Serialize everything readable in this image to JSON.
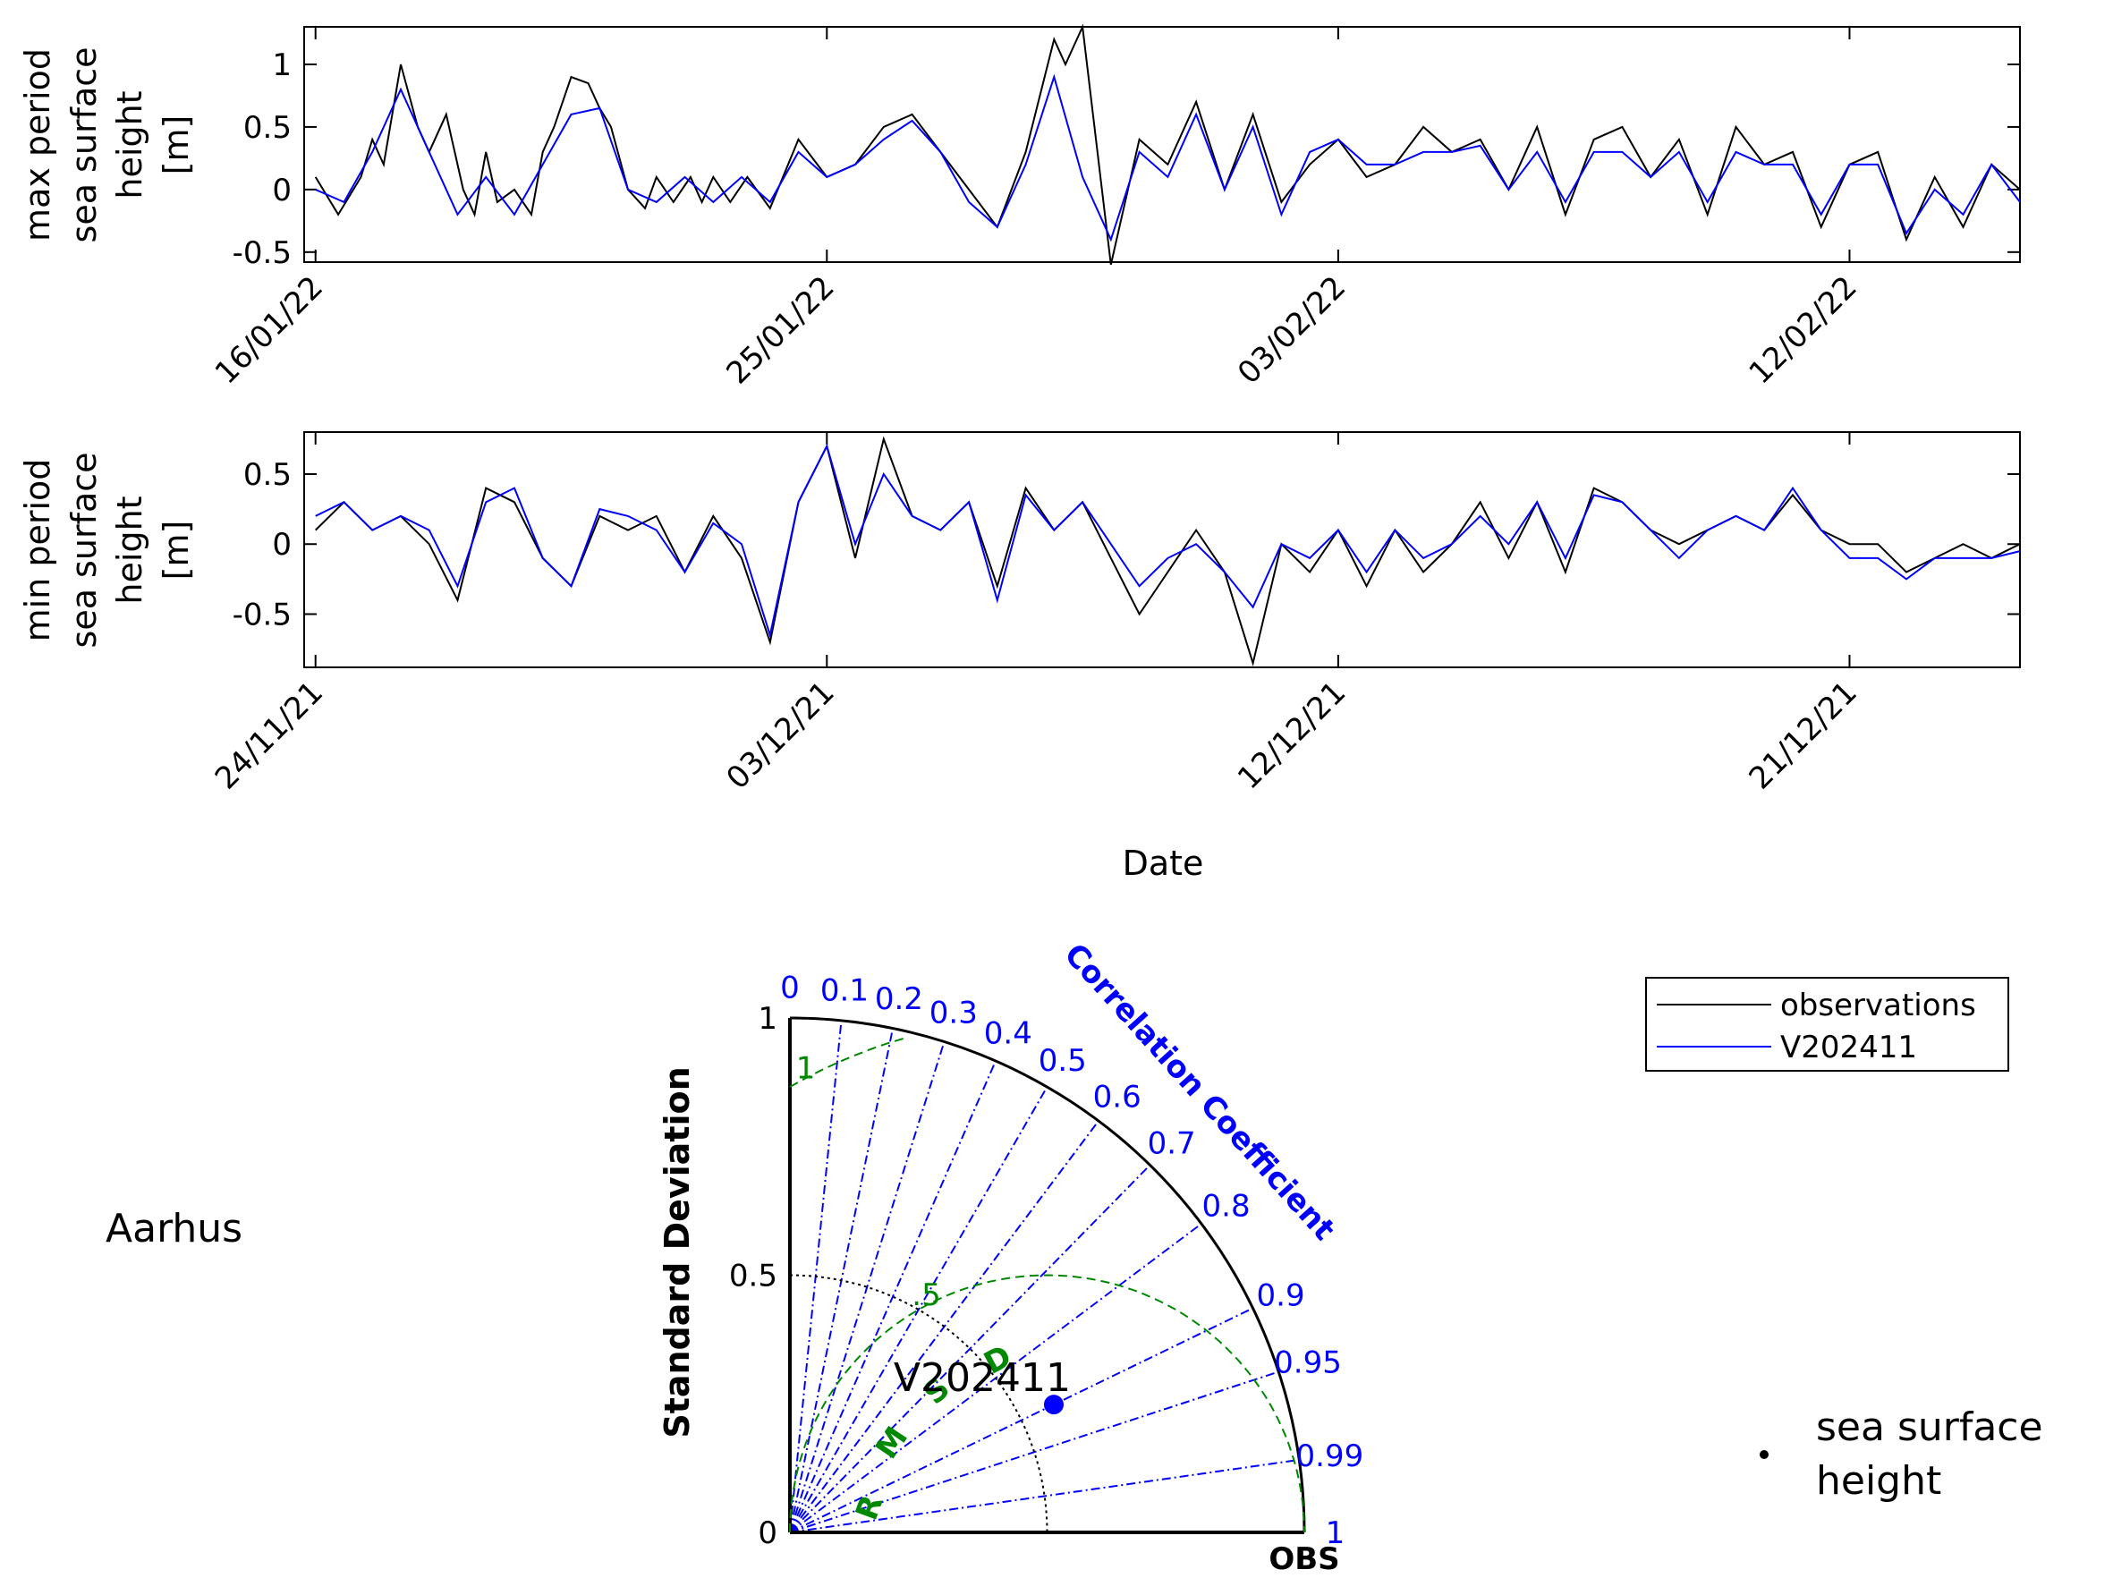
{
  "station": "Aarhus",
  "colors": {
    "observations": "#000000",
    "model": "#0000ff",
    "rmsd": "#008800",
    "grid": "#000000"
  },
  "chart_data": [
    {
      "type": "line",
      "id": "max",
      "ylabel": [
        "max period",
        "sea surface",
        "height",
        "[m]"
      ],
      "ylim": [
        -0.58,
        1.3
      ],
      "yticks": [
        -0.5,
        0,
        0.5,
        1
      ],
      "ytick_labels": [
        "-0.5",
        "0",
        "0.5",
        "1"
      ],
      "xlim_days": [
        -0.2,
        30
      ],
      "xticks": [
        "16/01/22",
        "25/01/22",
        "03/02/22",
        "12/02/22"
      ],
      "series": [
        {
          "name": "observations",
          "color": "#000000",
          "x": [
            0,
            0.4,
            0.8,
            1,
            1.2,
            1.5,
            1.8,
            2,
            2.3,
            2.6,
            2.8,
            3,
            3.2,
            3.5,
            3.8,
            4,
            4.2,
            4.5,
            4.8,
            5,
            5.2,
            5.5,
            5.8,
            6,
            6.3,
            6.6,
            6.8,
            7,
            7.3,
            7.6,
            8,
            8.5,
            9,
            9.5,
            10,
            10.5,
            11,
            11.5,
            12,
            12.5,
            13,
            13.2,
            13.5,
            14,
            14.5,
            15,
            15.5,
            16,
            16.5,
            17,
            17.5,
            18,
            18.5,
            19,
            19.5,
            20,
            20.5,
            21,
            21.5,
            22,
            22.5,
            23,
            23.5,
            24,
            24.5,
            25,
            25.5,
            26,
            26.5,
            27,
            27.5,
            28,
            28.5,
            29,
            29.5,
            30
          ],
          "y": [
            0.1,
            -0.2,
            0.1,
            0.4,
            0.2,
            1.0,
            0.5,
            0.3,
            0.6,
            0.0,
            -0.2,
            0.3,
            -0.1,
            0.0,
            -0.2,
            0.3,
            0.5,
            0.9,
            0.85,
            0.65,
            0.5,
            0.0,
            -0.15,
            0.1,
            -0.1,
            0.1,
            -0.1,
            0.1,
            -0.1,
            0.1,
            -0.15,
            0.4,
            0.1,
            0.2,
            0.5,
            0.6,
            0.3,
            0.0,
            -0.3,
            0.3,
            1.2,
            1.0,
            1.3,
            -0.6,
            0.4,
            0.2,
            0.7,
            0.0,
            0.6,
            -0.1,
            0.2,
            0.4,
            0.1,
            0.2,
            0.5,
            0.3,
            0.4,
            0.0,
            0.5,
            -0.2,
            0.4,
            0.5,
            0.1,
            0.4,
            -0.2,
            0.5,
            0.2,
            0.3,
            -0.3,
            0.2,
            0.3,
            -0.4,
            0.1,
            -0.3,
            0.2,
            0.0
          ]
        },
        {
          "name": "V202411",
          "color": "#0000ff",
          "x": [
            0,
            0.5,
            1,
            1.5,
            2,
            2.5,
            3,
            3.5,
            4,
            4.5,
            5,
            5.5,
            6,
            6.5,
            7,
            7.5,
            8,
            8.5,
            9,
            9.5,
            10,
            10.5,
            11,
            11.5,
            12,
            12.5,
            13,
            13.5,
            14,
            14.5,
            15,
            15.5,
            16,
            16.5,
            17,
            17.5,
            18,
            18.5,
            19,
            19.5,
            20,
            20.5,
            21,
            21.5,
            22,
            22.5,
            23,
            23.5,
            24,
            24.5,
            25,
            25.5,
            26,
            26.5,
            27,
            27.5,
            28,
            28.5,
            29,
            29.5,
            30
          ],
          "y": [
            0.0,
            -0.1,
            0.3,
            0.8,
            0.3,
            -0.2,
            0.1,
            -0.2,
            0.2,
            0.6,
            0.65,
            0.0,
            -0.1,
            0.1,
            -0.1,
            0.1,
            -0.1,
            0.3,
            0.1,
            0.2,
            0.4,
            0.55,
            0.3,
            -0.1,
            -0.3,
            0.2,
            0.9,
            0.1,
            -0.4,
            0.3,
            0.1,
            0.6,
            0.0,
            0.5,
            -0.2,
            0.3,
            0.4,
            0.2,
            0.2,
            0.3,
            0.3,
            0.35,
            0.0,
            0.3,
            -0.1,
            0.3,
            0.3,
            0.1,
            0.3,
            -0.1,
            0.3,
            0.2,
            0.2,
            -0.2,
            0.2,
            0.2,
            -0.35,
            0.0,
            -0.2,
            0.2,
            -0.1
          ]
        }
      ]
    },
    {
      "type": "line",
      "id": "min",
      "ylabel": [
        "min period",
        "sea surface",
        "height",
        "[m]"
      ],
      "ylim": [
        -0.88,
        0.8
      ],
      "yticks": [
        -0.5,
        0,
        0.5
      ],
      "ytick_labels": [
        "-0.5",
        "0",
        "0.5"
      ],
      "xlim_days": [
        -0.2,
        30
      ],
      "xticks": [
        "24/11/21",
        "03/12/21",
        "12/12/21",
        "21/12/21"
      ],
      "series": [
        {
          "name": "observations",
          "color": "#000000",
          "x": [
            0,
            0.5,
            1,
            1.5,
            2,
            2.5,
            3,
            3.5,
            4,
            4.5,
            5,
            5.5,
            6,
            6.5,
            7,
            7.5,
            8,
            8.5,
            9,
            9.5,
            10,
            10.5,
            11,
            11.5,
            12,
            12.5,
            13,
            13.5,
            14,
            14.5,
            15,
            15.5,
            16,
            16.5,
            17,
            17.5,
            18,
            18.5,
            19,
            19.5,
            20,
            20.5,
            21,
            21.5,
            22,
            22.5,
            23,
            23.5,
            24,
            24.5,
            25,
            25.5,
            26,
            26.5,
            27,
            27.5,
            28,
            28.5,
            29,
            29.5,
            30
          ],
          "y": [
            0.1,
            0.3,
            0.1,
            0.2,
            0.0,
            -0.4,
            0.4,
            0.3,
            -0.1,
            -0.3,
            0.2,
            0.1,
            0.2,
            -0.2,
            0.2,
            -0.1,
            -0.7,
            0.3,
            0.7,
            -0.1,
            0.75,
            0.2,
            0.1,
            0.3,
            -0.3,
            0.4,
            0.1,
            0.3,
            -0.1,
            -0.5,
            -0.2,
            0.1,
            -0.2,
            -0.85,
            0.0,
            -0.2,
            0.1,
            -0.3,
            0.1,
            -0.2,
            0.0,
            0.3,
            -0.1,
            0.3,
            -0.2,
            0.4,
            0.3,
            0.1,
            0.0,
            0.1,
            0.2,
            0.1,
            0.35,
            0.1,
            0.0,
            0.0,
            -0.2,
            -0.1,
            0.0,
            -0.1,
            0.0
          ]
        },
        {
          "name": "V202411",
          "color": "#0000ff",
          "x": [
            0,
            0.5,
            1,
            1.5,
            2,
            2.5,
            3,
            3.5,
            4,
            4.5,
            5,
            5.5,
            6,
            6.5,
            7,
            7.5,
            8,
            8.5,
            9,
            9.5,
            10,
            10.5,
            11,
            11.5,
            12,
            12.5,
            13,
            13.5,
            14,
            14.5,
            15,
            15.5,
            16,
            16.5,
            17,
            17.5,
            18,
            18.5,
            19,
            19.5,
            20,
            20.5,
            21,
            21.5,
            22,
            22.5,
            23,
            23.5,
            24,
            24.5,
            25,
            25.5,
            26,
            26.5,
            27,
            27.5,
            28,
            28.5,
            29,
            29.5,
            30
          ],
          "y": [
            0.2,
            0.3,
            0.1,
            0.2,
            0.1,
            -0.3,
            0.3,
            0.4,
            -0.1,
            -0.3,
            0.25,
            0.2,
            0.1,
            -0.2,
            0.15,
            0.0,
            -0.65,
            0.3,
            0.7,
            0.0,
            0.5,
            0.2,
            0.1,
            0.3,
            -0.4,
            0.35,
            0.1,
            0.3,
            0.0,
            -0.3,
            -0.1,
            0.0,
            -0.2,
            -0.45,
            0.0,
            -0.1,
            0.1,
            -0.2,
            0.1,
            -0.1,
            0.0,
            0.2,
            0.0,
            0.3,
            -0.1,
            0.35,
            0.3,
            0.1,
            -0.1,
            0.1,
            0.2,
            0.1,
            0.4,
            0.1,
            -0.1,
            -0.1,
            -0.25,
            -0.1,
            -0.1,
            -0.1,
            -0.05
          ]
        }
      ]
    },
    {
      "type": "scatter",
      "id": "taylor",
      "kind": "taylor-diagram",
      "xlabel": "OBS",
      "ylabel": "Standard Deviation",
      "std_ticks": [
        "0",
        "0.5",
        "1"
      ],
      "std_max": 1,
      "correlation_label": "Correlation Coefficient",
      "correlation_ticks": [
        0,
        0.1,
        0.2,
        0.3,
        0.4,
        0.5,
        0.6,
        0.7,
        0.8,
        0.9,
        0.95,
        0.99,
        1
      ],
      "correlation_tick_labels": [
        "0",
        "0.1",
        "0.2",
        "0.3",
        "0.4",
        "0.5",
        "0.6",
        "0.7",
        "0.8",
        "0.9",
        "0.95",
        "0.99",
        "1"
      ],
      "rmsd_label": [
        "R",
        "M",
        "S",
        "D"
      ],
      "rmsd_ticks": [
        0.5,
        1
      ],
      "rmsd_tick_labels": [
        ".5",
        "1"
      ],
      "reference_std": 0.5,
      "points": [
        {
          "name": "V202411",
          "std": 0.57,
          "corr": 0.9
        }
      ]
    }
  ],
  "bottom_xlabel": "Date",
  "legend": {
    "entries": [
      "observations",
      "V202411"
    ],
    "placement": "right"
  },
  "variable": "sea surface\nheight"
}
